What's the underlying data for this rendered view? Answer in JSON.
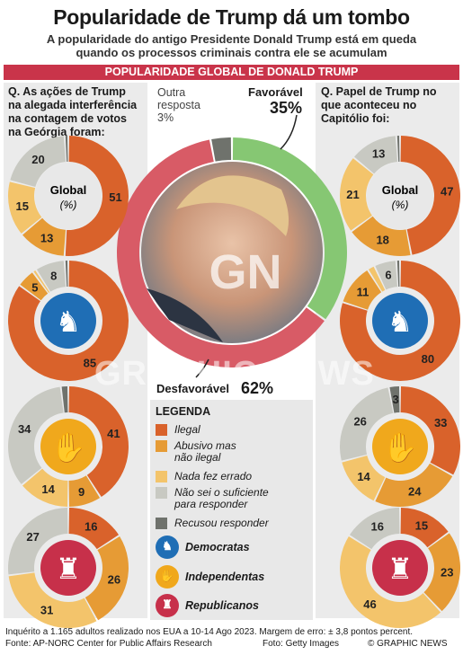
{
  "header": {
    "title": "Popularidade de Trump dá um tombo",
    "subtitle_line1": "A popularidade do antigo Presidente Donald Trump está em queda",
    "subtitle_line2": "quando os processos criminais contra ele se acumulam",
    "banner": "POPULARIDADE GLOBAL DE DONALD TRUMP"
  },
  "left_question": [
    "Q. As ações de Trump",
    "na alegada interferência",
    "na contagem de votos",
    "na Geórgia foram:"
  ],
  "right_question": [
    "Q. Papel de Trump no",
    "que aconteceu no",
    "Capitólio foi:"
  ],
  "center": {
    "favorable_label": "Favorável",
    "favorable_value": "35%",
    "other_label": [
      "Outra",
      "resposta",
      "3%"
    ],
    "unfavorable_label": "Desfavorável",
    "unfavorable_value": "62%",
    "watermark": "GRAPHIC NEWS",
    "logo": "GN"
  },
  "global_label": "Global",
  "global_unit": "(%)",
  "legend": {
    "title": "LEGENDA",
    "items": [
      {
        "label": [
          "Ilegal"
        ],
        "color": "#d9622b"
      },
      {
        "label": [
          "Abusivo mas",
          "não ilegal"
        ],
        "color": "#e69b35"
      },
      {
        "label": [
          "Nada fez errado"
        ],
        "color": "#f3c46b"
      },
      {
        "label": [
          "Não sei o suficiente",
          "para responder"
        ],
        "color": "#c8c9c2"
      },
      {
        "label": [
          "Recusou responder"
        ],
        "color": "#6f726c"
      }
    ],
    "groups": [
      {
        "label": "Democratas",
        "color": "#1f6eb5",
        "icon": "donkey-icon"
      },
      {
        "label": "Independentas",
        "color": "#f0a81c",
        "icon": "hand-icon"
      },
      {
        "label": "Republicanos",
        "color": "#c7304a",
        "icon": "elephant-icon"
      }
    ]
  },
  "footer": {
    "note": "Inquérito a 1.165 adultos realizado nos EUA a 10-14 Ago 2023. Margem de erro: ± 3,8 pontos percent.",
    "source": "Fonte: AP-NORC Center for Public Affairs Research",
    "photo": "Foto: Getty Images",
    "copyright": "© GRAPHIC NEWS"
  },
  "chart_data": [
    {
      "type": "pie",
      "name": "Popularidade global de Donald Trump",
      "categories": [
        "Favorável",
        "Desfavorável",
        "Outra resposta"
      ],
      "values": [
        35,
        62,
        3
      ],
      "colors": [
        "#86c773",
        "#d85b66",
        "#6f726c"
      ]
    },
    {
      "type": "pie",
      "question": "Georgia",
      "categories": [
        "Ilegal",
        "Abusivo mas não ilegal",
        "Nada fez errado",
        "Não sei o suficiente para responder",
        "Recusou responder"
      ],
      "groups": [
        {
          "name": "Global",
          "values": [
            51,
            13,
            15,
            20,
            1
          ]
        },
        {
          "name": "Democratas",
          "values": [
            85,
            5,
            1,
            8,
            1
          ]
        },
        {
          "name": "Independentas",
          "values": [
            41,
            9,
            14,
            34,
            2
          ]
        },
        {
          "name": "Republicanos",
          "values": [
            16,
            26,
            31,
            27,
            0
          ]
        }
      ]
    },
    {
      "type": "pie",
      "question": "Capitol",
      "categories": [
        "Ilegal",
        "Abusivo mas não ilegal",
        "Nada fez errado",
        "Não sei o suficiente para responder",
        "Recusou responder"
      ],
      "groups": [
        {
          "name": "Global",
          "values": [
            47,
            18,
            21,
            13,
            1
          ]
        },
        {
          "name": "Democratas",
          "values": [
            80,
            11,
            2,
            6,
            1
          ]
        },
        {
          "name": "Independentas",
          "values": [
            33,
            24,
            14,
            26,
            3
          ]
        },
        {
          "name": "Republicanos",
          "values": [
            15,
            23,
            46,
            16,
            0
          ]
        }
      ]
    }
  ]
}
